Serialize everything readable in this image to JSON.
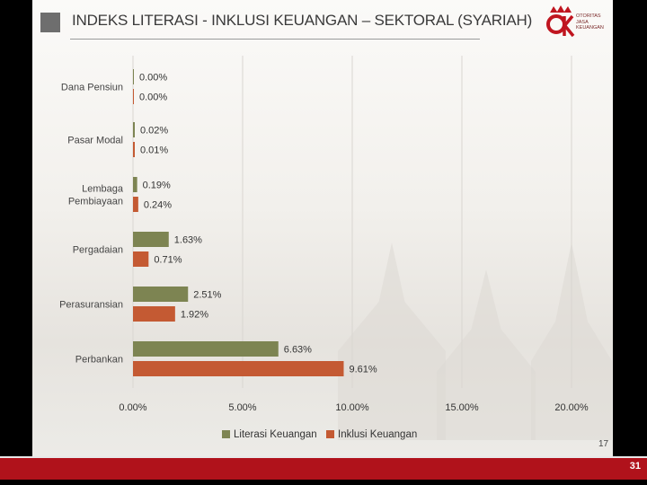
{
  "header": {
    "title": "INDEKS LITERASI - INKLUSI KEUANGAN – SEKTORAL (SYARIAH)",
    "logo_text": "OJK",
    "logo_subtext": "OTORITAS\nJASA\nKEUANGAN"
  },
  "colors": {
    "literasi": "#7d8452",
    "inklusi": "#c45a33",
    "footer": "#b0121b"
  },
  "chart_data": {
    "type": "bar",
    "orientation": "horizontal",
    "categories": [
      "Dana Pensiun",
      "Pasar Modal",
      "Lembaga Pembiayaan",
      "Pergadaian",
      "Perasuransian",
      "Perbankan"
    ],
    "category_labels": [
      [
        "Dana Pensiun"
      ],
      [
        "Pasar Modal"
      ],
      [
        "Lembaga",
        "Pembiayaan"
      ],
      [
        "Pergadaian"
      ],
      [
        "Perasuransian"
      ],
      [
        "Perbankan"
      ]
    ],
    "series": [
      {
        "name": "Literasi Keuangan",
        "values": [
          0.0,
          0.02,
          0.19,
          1.63,
          2.51,
          6.63
        ],
        "labels": [
          "0.00%",
          "0.02%",
          "0.19%",
          "1.63%",
          "2.51%",
          "6.63%"
        ]
      },
      {
        "name": "Inklusi Keuangan",
        "values": [
          0.0,
          0.01,
          0.24,
          0.71,
          1.92,
          9.61
        ],
        "labels": [
          "0.00%",
          "0.01%",
          "0.24%",
          "0.71%",
          "1.92%",
          "9.61%"
        ]
      }
    ],
    "xlim": [
      0,
      20
    ],
    "xticks": [
      0,
      5,
      10,
      15,
      20
    ],
    "xtick_labels": [
      "0.00%",
      "5.00%",
      "10.00%",
      "15.00%",
      "20.00%"
    ],
    "grid": "vertical",
    "legend_position": "bottom"
  },
  "page_number": "17",
  "footer_number": "31"
}
